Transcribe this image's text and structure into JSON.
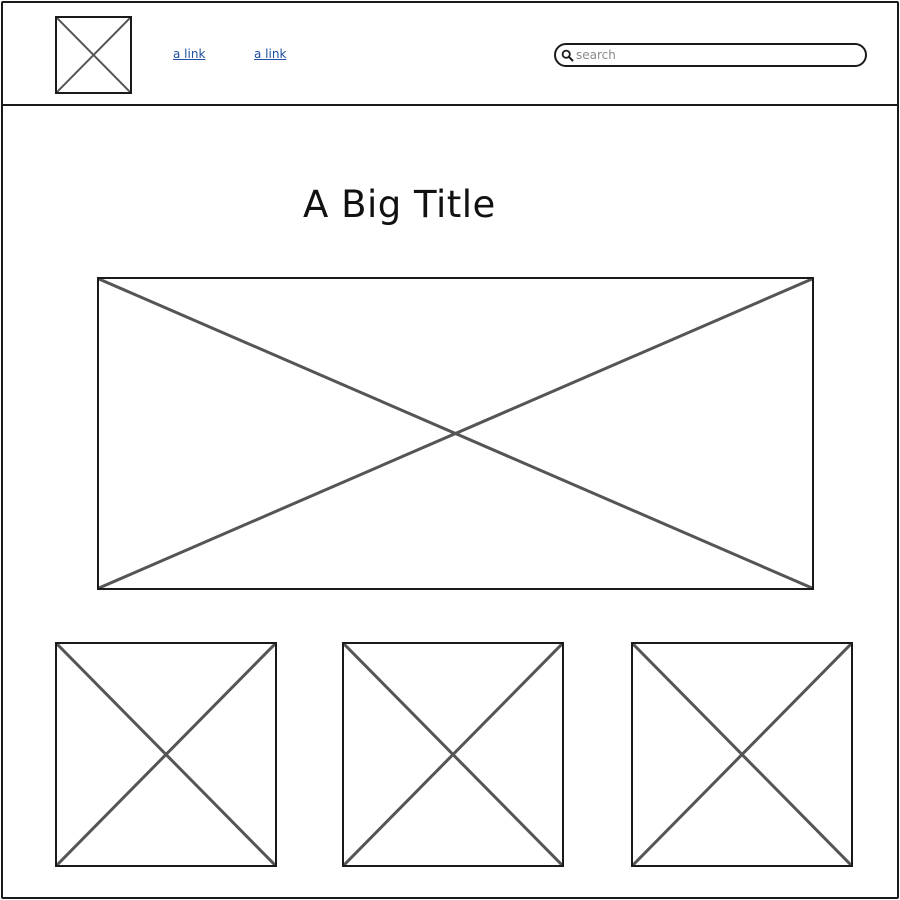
{
  "header": {
    "logo_icon": "image-placeholder-icon",
    "links": [
      {
        "label": "a link"
      },
      {
        "label": "a link"
      }
    ],
    "search": {
      "icon": "search-icon",
      "placeholder": "search",
      "value": ""
    }
  },
  "main": {
    "title": "A Big Title",
    "hero_icon": "image-placeholder-icon",
    "cards": [
      {
        "icon": "image-placeholder-icon"
      },
      {
        "icon": "image-placeholder-icon"
      },
      {
        "icon": "image-placeholder-icon"
      }
    ]
  },
  "colors": {
    "border": "#1a1a1a",
    "placeholder_cross": "#555555",
    "link": "#1f4fa0",
    "background": "#ffffff"
  }
}
